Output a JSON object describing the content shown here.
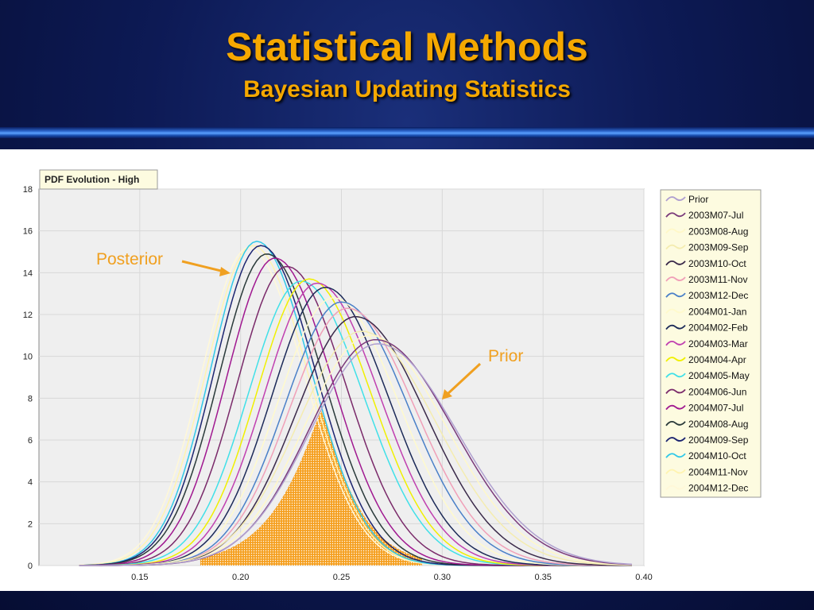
{
  "slide": {
    "title": "Statistical Methods",
    "subtitle": "Bayesian Updating Statistics"
  },
  "colors": {
    "title": "#f5a800",
    "annotation": "#f0a020",
    "plot_bg": "#efefef",
    "legend_bg": "#fdfbe0"
  },
  "chart_data": {
    "type": "line",
    "title": "PDF Evolution - High",
    "xlabel": "",
    "ylabel": "",
    "xlim": [
      0.1,
      0.4
    ],
    "ylim": [
      0,
      18
    ],
    "x_ticks": [
      0.15,
      0.2,
      0.25,
      0.3,
      0.35,
      0.4
    ],
    "x_tick_labels": [
      "0.15",
      "0.20",
      "0.25",
      "0.30",
      "0.35",
      "0.40"
    ],
    "y_ticks": [
      0,
      2,
      4,
      6,
      8,
      10,
      12,
      14,
      16,
      18
    ],
    "grid": true,
    "legend_position": "right",
    "annotations": [
      {
        "text": "Posterior",
        "points_to": "Posterior"
      },
      {
        "text": "Prior",
        "points_to": "Prior"
      }
    ],
    "series": [
      {
        "name": "Prior",
        "peak_x": 0.268,
        "peak_y": 10.6,
        "color": "#b0a0d0"
      },
      {
        "name": "2003M07-Jul",
        "peak_x": 0.267,
        "peak_y": 10.8,
        "color": "#7a3a7a"
      },
      {
        "name": "2003M08-Aug",
        "peak_x": 0.264,
        "peak_y": 11.0,
        "color": "#fff8c8"
      },
      {
        "name": "2003M09-Sep",
        "peak_x": 0.26,
        "peak_y": 11.2,
        "color": "#f4ecb0"
      },
      {
        "name": "2003M10-Oct",
        "peak_x": 0.257,
        "peak_y": 11.9,
        "color": "#3a2a4a"
      },
      {
        "name": "2003M11-Nov",
        "peak_x": 0.253,
        "peak_y": 12.3,
        "color": "#f0a0b8"
      },
      {
        "name": "2003M12-Dec",
        "peak_x": 0.25,
        "peak_y": 12.6,
        "color": "#4a80c8"
      },
      {
        "name": "2004M01-Jan",
        "peak_x": 0.246,
        "peak_y": 12.8,
        "color": "#fffacc"
      },
      {
        "name": "2004M02-Feb",
        "peak_x": 0.242,
        "peak_y": 13.3,
        "color": "#1c2a58"
      },
      {
        "name": "2004M03-Mar",
        "peak_x": 0.238,
        "peak_y": 13.5,
        "color": "#c040b0"
      },
      {
        "name": "2004M04-Apr",
        "peak_x": 0.234,
        "peak_y": 13.7,
        "color": "#f0f000"
      },
      {
        "name": "2004M05-May",
        "peak_x": 0.23,
        "peak_y": 13.6,
        "color": "#40e0e8"
      },
      {
        "name": "2004M06-Jun",
        "peak_x": 0.223,
        "peak_y": 14.3,
        "color": "#7a2a6a"
      },
      {
        "name": "2004M07-Jul",
        "peak_x": 0.217,
        "peak_y": 14.7,
        "color": "#a01890"
      },
      {
        "name": "2004M08-Aug",
        "peak_x": 0.213,
        "peak_y": 14.9,
        "color": "#2a3a3a"
      },
      {
        "name": "2004M09-Sep",
        "peak_x": 0.21,
        "peak_y": 15.3,
        "color": "#1c2470"
      },
      {
        "name": "2004M10-Oct",
        "peak_x": 0.208,
        "peak_y": 15.5,
        "color": "#30c8e8"
      },
      {
        "name": "2004M11-Nov",
        "peak_x": 0.206,
        "peak_y": 15.3,
        "color": "#fff4b0"
      },
      {
        "name": "2004M12-Dec",
        "peak_x": 0.204,
        "peak_y": 15.2,
        "color": "#fff8d8"
      }
    ],
    "shaded_area": {
      "peak_x": 0.24,
      "peak_y": 7.4,
      "x_range": [
        0.18,
        0.29
      ],
      "color": "#f5a020"
    }
  }
}
